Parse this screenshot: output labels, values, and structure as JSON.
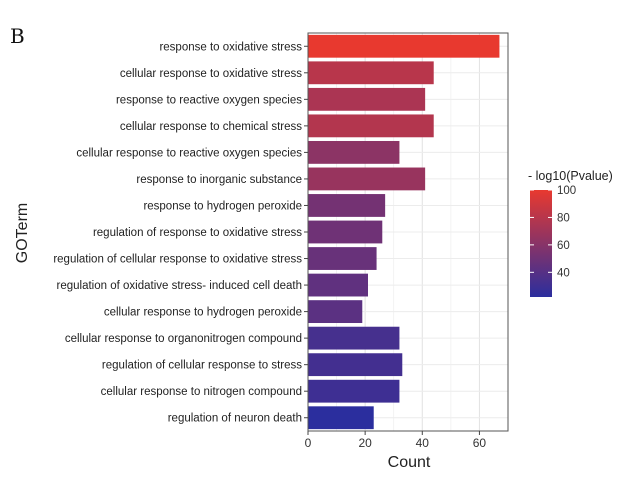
{
  "panel_label": "B",
  "chart_data": {
    "type": "bar",
    "orientation": "horizontal",
    "title": "",
    "xlabel": "Count",
    "ylabel": "GOTerm",
    "xlim": [
      0,
      70
    ],
    "xticks": [
      0,
      20,
      40,
      60
    ],
    "grid": true,
    "categories": [
      "response to oxidative stress",
      "cellular response to oxidative stress",
      "response to reactive oxygen species",
      "cellular response to chemical stress",
      "cellular response to reactive oxygen species",
      "response to inorganic substance",
      "response to hydrogen peroxide",
      "regulation of response to oxidative stress",
      "regulation of cellular response to oxidative stress",
      "regulation of oxidative stress- induced cell death",
      "cellular response to hydrogen peroxide",
      "cellular response to organonitrogen compound",
      "regulation of cellular response to stress",
      "cellular response to nitrogen compound",
      "regulation of neuron death"
    ],
    "values": [
      67,
      44,
      41,
      44,
      32,
      41,
      27,
      26,
      24,
      21,
      19,
      32,
      33,
      32,
      23
    ],
    "color_values": [
      100,
      80,
      75,
      78,
      62,
      67,
      52,
      50,
      47,
      44,
      42,
      33,
      32,
      30,
      22
    ],
    "legend": {
      "title": "- log10(Pvalue)",
      "ticks": [
        100,
        80,
        60,
        40
      ],
      "range": [
        22,
        100
      ],
      "low_color": "#2b2e9e",
      "high_color": "#e8392f",
      "position": "right"
    }
  }
}
